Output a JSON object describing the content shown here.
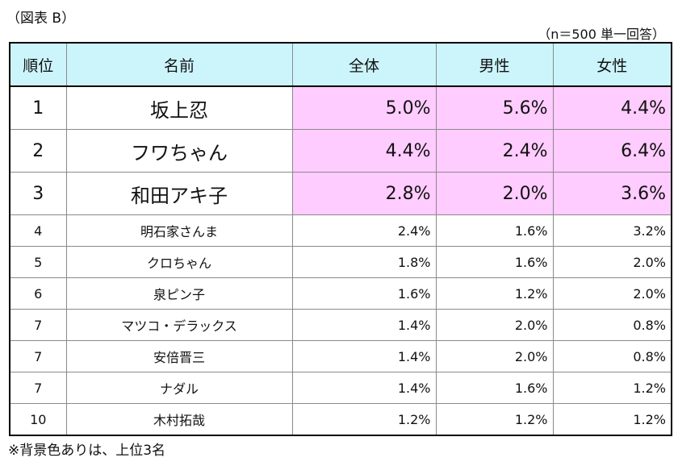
{
  "caption": "（図表 B）",
  "note_top": "（n＝500 単一回答）",
  "note_bottom": "※背景色ありは、上位3名",
  "highlight_color": "#ffccff",
  "header_color": "#ccf5fb",
  "headers": {
    "rank": "順位",
    "name": "名前",
    "total": "全体",
    "male": "男性",
    "female": "女性"
  },
  "rows": [
    {
      "rank": "1",
      "name": "坂上忍",
      "total": "5.0%",
      "male": "5.6%",
      "female": "4.4%"
    },
    {
      "rank": "2",
      "name": "フワちゃん",
      "total": "4.4%",
      "male": "2.4%",
      "female": "6.4%"
    },
    {
      "rank": "3",
      "name": "和田アキ子",
      "total": "2.8%",
      "male": "2.0%",
      "female": "3.6%"
    },
    {
      "rank": "4",
      "name": "明石家さんま",
      "total": "2.4%",
      "male": "1.6%",
      "female": "3.2%"
    },
    {
      "rank": "5",
      "name": "クロちゃん",
      "total": "1.8%",
      "male": "1.6%",
      "female": "2.0%"
    },
    {
      "rank": "6",
      "name": "泉ピン子",
      "total": "1.6%",
      "male": "1.2%",
      "female": "2.0%"
    },
    {
      "rank": "7",
      "name": "マツコ・デラックス",
      "total": "1.4%",
      "male": "2.0%",
      "female": "0.8%"
    },
    {
      "rank": "7",
      "name": "安倍晋三",
      "total": "1.4%",
      "male": "2.0%",
      "female": "0.8%"
    },
    {
      "rank": "7",
      "name": "ナダル",
      "total": "1.4%",
      "male": "1.6%",
      "female": "1.2%"
    },
    {
      "rank": "10",
      "name": "木村拓哉",
      "total": "1.2%",
      "male": "1.2%",
      "female": "1.2%"
    }
  ]
}
